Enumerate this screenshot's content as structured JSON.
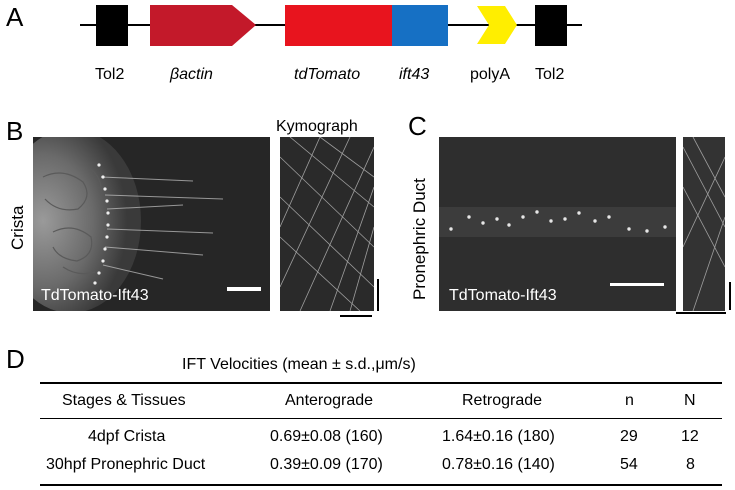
{
  "panels": {
    "a": "A",
    "b": "B",
    "c": "C",
    "d": "D"
  },
  "construct": {
    "labels": {
      "tol2_left": "Tol2",
      "bactin": "βactin",
      "tdtomato": "tdTomato",
      "ift43": "ift43",
      "polya": "polyA",
      "tol2_right": "Tol2"
    },
    "colors": {
      "tol2": "#000000",
      "bactin": "#c3192a",
      "tdtomato": "#e8141e",
      "ift43": "#1670c4",
      "polya": "#ffee00"
    }
  },
  "panel_b": {
    "tissue_label": "Crista",
    "kymograph_label": "Kymograph",
    "image_caption": "TdTomato-Ift43"
  },
  "panel_c": {
    "tissue_label": "Pronephric Duct",
    "image_caption": "TdTomato-Ift43"
  },
  "table": {
    "title": "IFT Velocities (mean ± s.d.,μm/s)",
    "headers": [
      "Stages & Tissues",
      "Anterograde",
      "Retrograde",
      "n",
      "N"
    ],
    "rows": [
      [
        "4dpf Crista",
        "0.69±0.08 (160)",
        "1.64±0.16 (180)",
        "29",
        "12"
      ],
      [
        "30hpf Pronephric Duct",
        "0.39±0.09 (170)",
        "0.78±0.16 (140)",
        "54",
        "8"
      ]
    ]
  }
}
